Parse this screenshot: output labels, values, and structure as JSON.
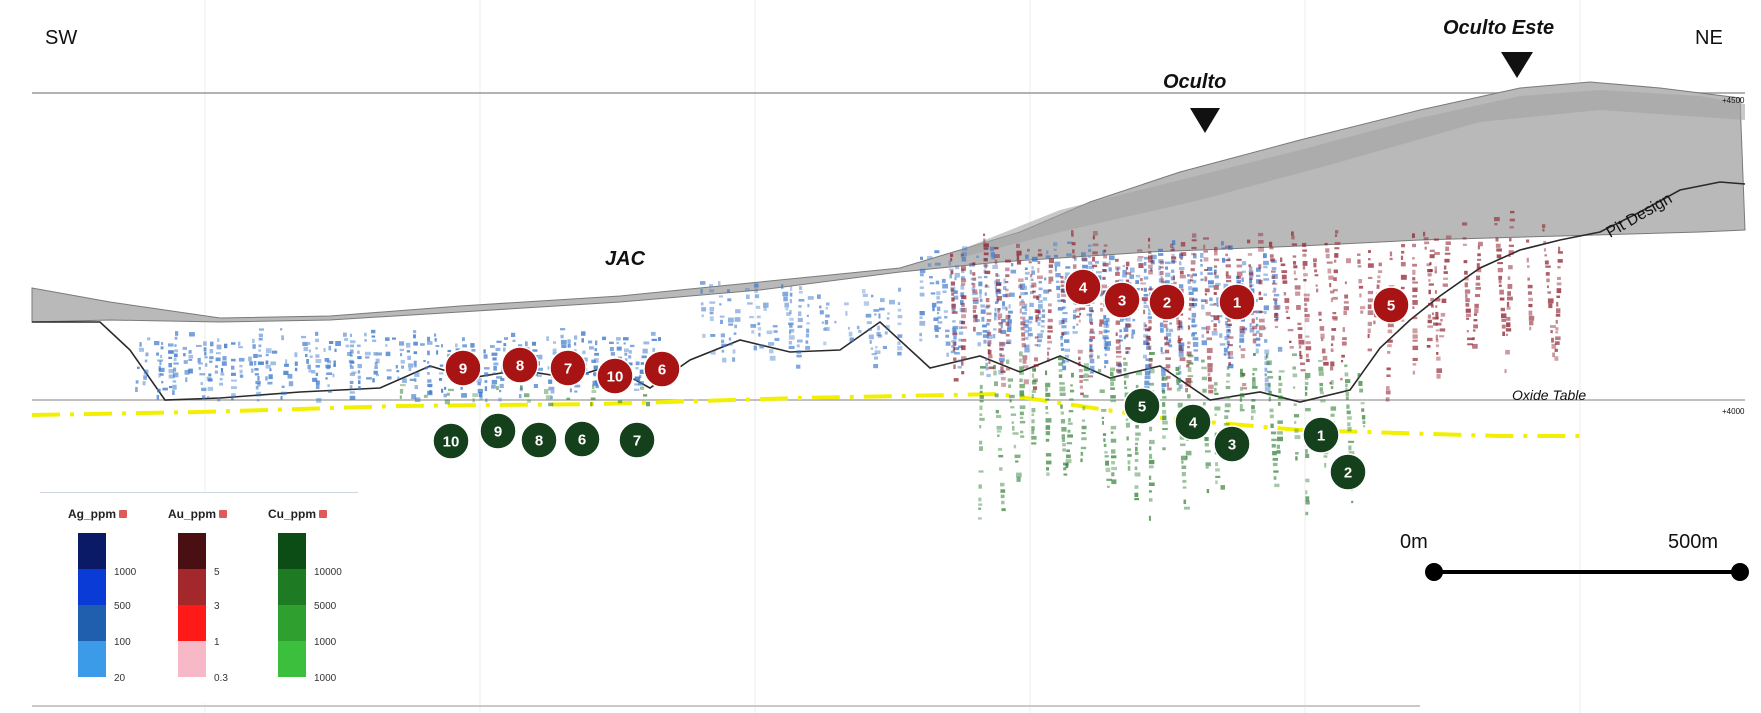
{
  "labels": {
    "sw": "SW",
    "ne": "NE",
    "oculto": "Oculto",
    "oculto_este": "Oculto Este",
    "jac": "JAC",
    "pit_design": "Pit Design",
    "oxide_table": "Oxide Table",
    "elev_top": "+4500",
    "elev_bottom": "+4000"
  },
  "scale_bar": {
    "start": "0m",
    "end": "500m"
  },
  "red_markers": [
    "9",
    "8",
    "7",
    "10",
    "6",
    "4",
    "3",
    "2",
    "1",
    "5"
  ],
  "green_markers": [
    "10",
    "9",
    "8",
    "6",
    "7",
    "5",
    "4",
    "3",
    "1",
    "2"
  ],
  "legend": {
    "ag": {
      "title": "Ag_ppm",
      "ticks": [
        "1000",
        "500",
        "100",
        "20"
      ],
      "colors": [
        "#0a1a66",
        "#0b3bd6",
        "#1f5fae",
        "#3c9be8"
      ]
    },
    "au": {
      "title": "Au_ppm",
      "ticks": [
        "5",
        "3",
        "1",
        "0.3"
      ],
      "colors": [
        "#4a0f12",
        "#a3282c",
        "#ff1a1a",
        "#f7b8c8"
      ]
    },
    "cu": {
      "title": "Cu_ppm",
      "ticks": [
        "10000",
        "5000",
        "1000",
        "1000"
      ],
      "colors": [
        "#0b4d14",
        "#1f7a24",
        "#2fa02f",
        "#3cbf3c"
      ]
    }
  },
  "colors": {
    "ag_drill": "#3b77c9",
    "au_drill": "#8b1a28",
    "cu_drill": "#2e7d32",
    "red_marker": "#a81414",
    "green_marker": "#14401c",
    "oxide_line": "#f2f000"
  }
}
